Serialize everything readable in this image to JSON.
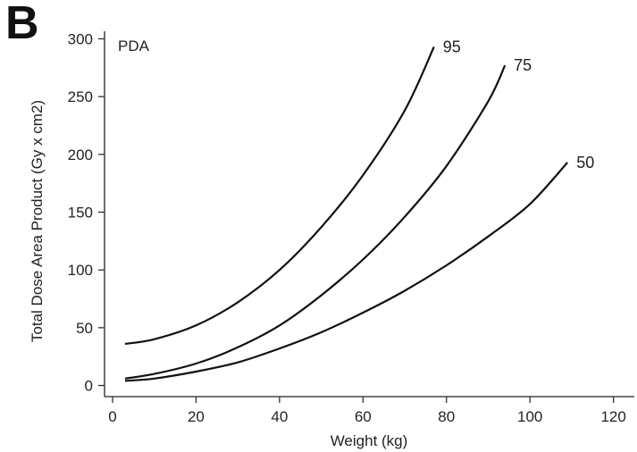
{
  "panel_label": "B",
  "chart_data": {
    "type": "line",
    "title": "",
    "annotation": "PDA",
    "xlabel": "Weight (kg)",
    "ylabel": "Total Dose Area Product (Gy x cm2)",
    "xlim": [
      0,
      125
    ],
    "ylim": [
      -5,
      305
    ],
    "xticks": [
      0,
      20,
      40,
      60,
      80,
      100,
      120
    ],
    "yticks": [
      0,
      50,
      100,
      150,
      200,
      250,
      300
    ],
    "grid": false,
    "legend": "none",
    "series": [
      {
        "name": "95",
        "color": "#111111",
        "x": [
          3,
          10,
          20,
          30,
          40,
          50,
          60,
          70,
          77
        ],
        "y": [
          36,
          40,
          52,
          72,
          100,
          137,
          182,
          238,
          293
        ]
      },
      {
        "name": "75",
        "color": "#111111",
        "x": [
          3,
          10,
          20,
          30,
          40,
          50,
          60,
          70,
          80,
          90,
          94
        ],
        "y": [
          6,
          10,
          19,
          33,
          52,
          78,
          109,
          146,
          190,
          246,
          277
        ]
      },
      {
        "name": "50",
        "color": "#111111",
        "x": [
          3,
          10,
          20,
          30,
          40,
          50,
          60,
          70,
          80,
          90,
          100,
          109
        ],
        "y": [
          4,
          6,
          12,
          20,
          32,
          46,
          63,
          82,
          104,
          129,
          157,
          193
        ]
      }
    ]
  }
}
